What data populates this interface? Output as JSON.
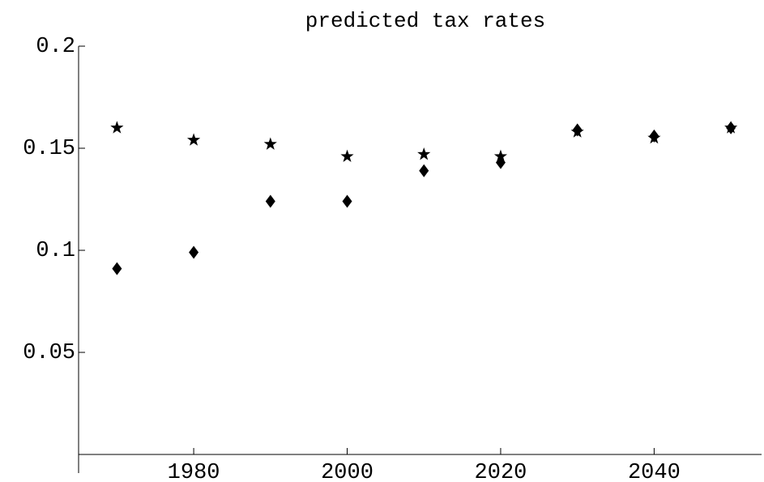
{
  "chart_data": {
    "type": "scatter",
    "title": "predicted tax rates",
    "x": [
      1970,
      1980,
      1990,
      2000,
      2010,
      2020,
      2030,
      2040,
      2050
    ],
    "series": [
      {
        "marker": "star",
        "color": "#000000",
        "values": [
          0.16,
          0.154,
          0.152,
          0.146,
          0.147,
          0.146,
          0.158,
          0.155,
          0.16
        ]
      },
      {
        "marker": "diamond",
        "color": "#000000",
        "values": [
          0.091,
          0.099,
          0.124,
          0.124,
          0.139,
          0.143,
          0.159,
          0.156,
          0.16
        ]
      }
    ],
    "xlim": [
      1965,
      2054
    ],
    "xticks": [
      1980,
      2000,
      2020,
      2040
    ],
    "ylim": [
      0,
      0.2
    ],
    "yticks": [
      0.05,
      0.1,
      0.15,
      0.2
    ],
    "grid": false
  }
}
